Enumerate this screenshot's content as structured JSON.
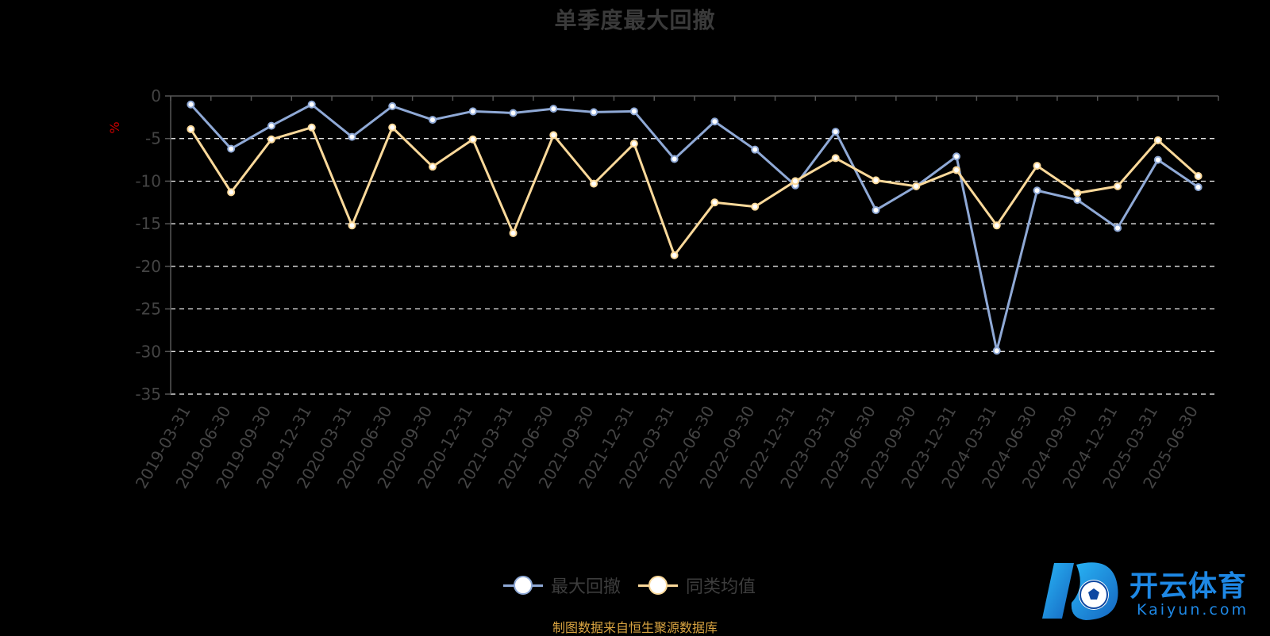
{
  "title": "单季度最大回撤",
  "source": "制图数据来自恒生聚源数据库",
  "logo": {
    "main": "开云体育",
    "sub": "Kaiyun.com"
  },
  "colors": {
    "series1": "#8fa9d6",
    "series2": "#fbd99a",
    "axis": "#555555",
    "grid": "#ffffff",
    "unit": "#cc0000"
  },
  "chart_data": {
    "type": "line",
    "ylabel": "%",
    "ylim": [
      -35,
      0
    ],
    "yticks": [
      0,
      -5,
      -10,
      -15,
      -20,
      -25,
      -30,
      -35
    ],
    "grid": true,
    "legend_position": "bottom",
    "x": [
      "2019-03-31",
      "2019-06-30",
      "2019-09-30",
      "2019-12-31",
      "2020-03-31",
      "2020-06-30",
      "2020-09-30",
      "2020-12-31",
      "2021-03-31",
      "2021-06-30",
      "2021-09-30",
      "2021-12-31",
      "2022-03-31",
      "2022-06-30",
      "2022-09-30",
      "2022-12-31",
      "2023-03-31",
      "2023-06-30",
      "2023-09-30",
      "2023-12-31",
      "2024-03-31",
      "2024-06-30",
      "2024-09-30",
      "2024-12-31",
      "2025-03-31",
      "2025-06-30"
    ],
    "series": [
      {
        "name": "最大回撤",
        "values": [
          -1.0,
          -6.2,
          -3.5,
          -1.0,
          -4.8,
          -1.2,
          -2.8,
          -1.8,
          -2.0,
          -1.5,
          -1.9,
          -1.8,
          -7.4,
          -3.0,
          -6.3,
          -10.5,
          -4.2,
          -13.4,
          -10.6,
          -7.1,
          -29.9,
          -11.1,
          -12.2,
          -15.5,
          -7.5,
          -10.7
        ]
      },
      {
        "name": "同类均值",
        "values": [
          -3.9,
          -11.3,
          -5.1,
          -3.7,
          -15.2,
          -3.7,
          -8.3,
          -5.1,
          -16.1,
          -4.6,
          -10.3,
          -5.6,
          -18.7,
          -12.5,
          -13.0,
          -10.0,
          -7.3,
          -9.9,
          -10.6,
          -8.7,
          -15.2,
          -8.2,
          -11.4,
          -10.6,
          -5.2,
          -9.4
        ]
      }
    ]
  }
}
